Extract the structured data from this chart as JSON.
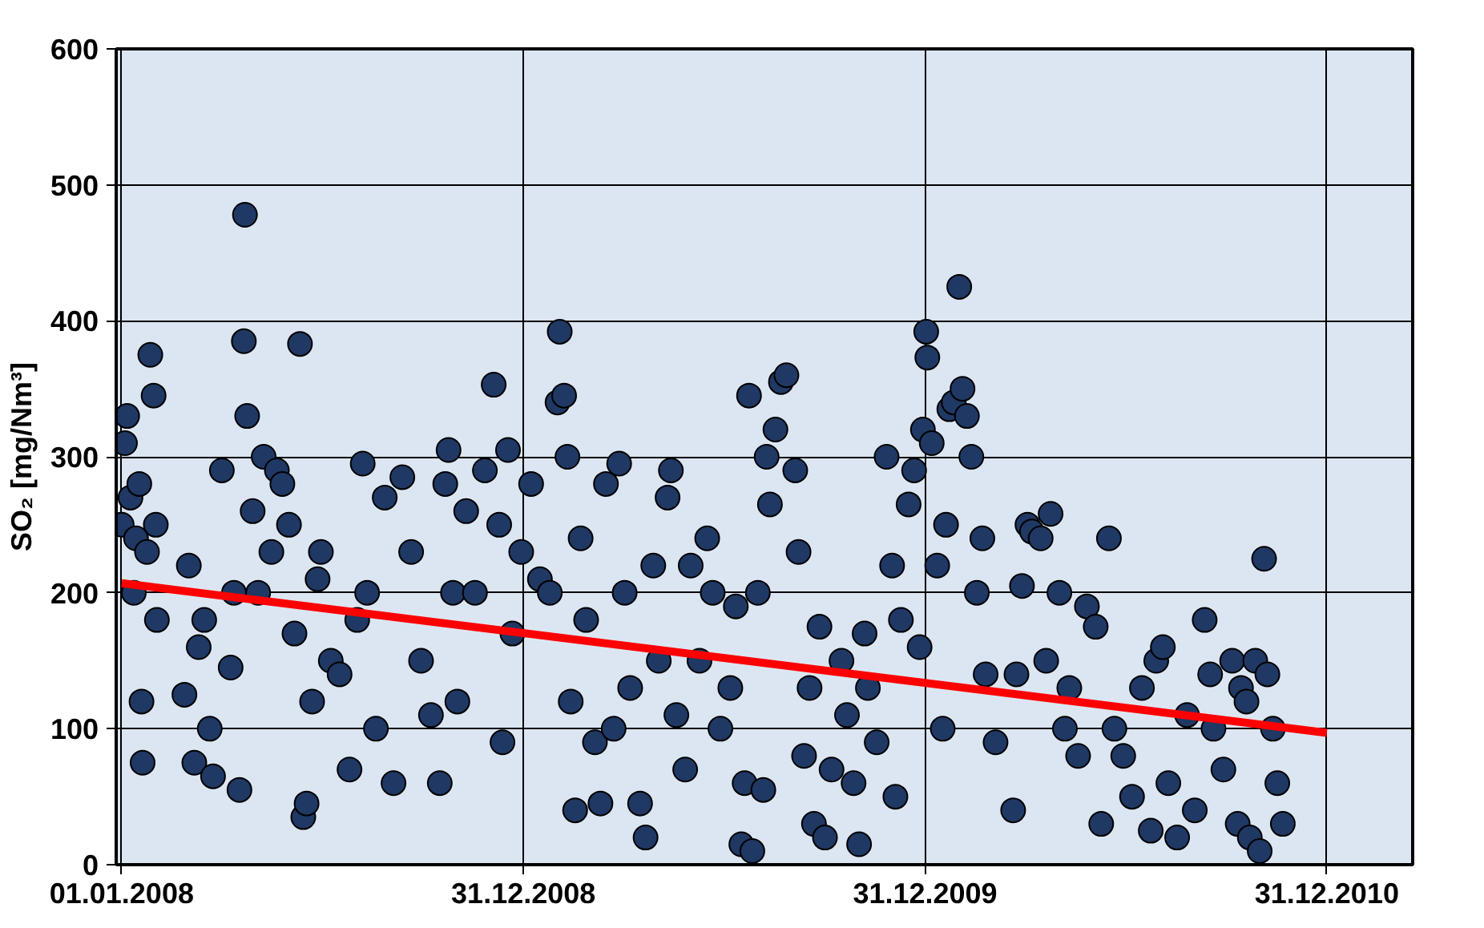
{
  "chart_data": {
    "type": "scatter",
    "ylabel": "SO₂ [mg/Nm³]",
    "xlim": [
      "2007-12-27",
      "2011-03-19"
    ],
    "ylim": [
      0,
      600
    ],
    "xticks": [
      {
        "value": "2008-01-01",
        "label": "01.01.2008"
      },
      {
        "value": "2008-12-31",
        "label": "31.12.2008"
      },
      {
        "value": "2009-12-31",
        "label": "31.12.2009"
      },
      {
        "value": "2010-12-31",
        "label": "31.12.2010"
      }
    ],
    "yticks": [
      0,
      100,
      200,
      300,
      400,
      500,
      600
    ],
    "grid": true,
    "series": [
      {
        "marker": "circle",
        "color": "#1f3864",
        "x": [
          "2008-01-01",
          "2008-01-04",
          "2008-01-06",
          "2008-01-09",
          "2008-01-12",
          "2008-01-14",
          "2008-01-17",
          "2008-01-19",
          "2008-01-20",
          "2008-01-24",
          "2008-01-27",
          "2008-01-30",
          "2008-02-01",
          "2008-02-02",
          "2008-02-27",
          "2008-03-02",
          "2008-03-07",
          "2008-03-11",
          "2008-03-16",
          "2008-03-21",
          "2008-03-24",
          "2008-04-01",
          "2008-04-09",
          "2008-04-12",
          "2008-04-17",
          "2008-04-21",
          "2008-04-22",
          "2008-04-24",
          "2008-04-29",
          "2008-05-04",
          "2008-05-09",
          "2008-05-16",
          "2008-05-21",
          "2008-05-26",
          "2008-06-01",
          "2008-06-06",
          "2008-06-11",
          "2008-06-14",
          "2008-06-17",
          "2008-06-22",
          "2008-06-27",
          "2008-06-30",
          "2008-07-09",
          "2008-07-17",
          "2008-07-26",
          "2008-08-02",
          "2008-08-07",
          "2008-08-11",
          "2008-08-19",
          "2008-08-27",
          "2008-09-04",
          "2008-09-12",
          "2008-09-20",
          "2008-09-29",
          "2008-10-08",
          "2008-10-16",
          "2008-10-21",
          "2008-10-24",
          "2008-10-28",
          "2008-11-01",
          "2008-11-09",
          "2008-11-17",
          "2008-11-26",
          "2008-12-04",
          "2008-12-09",
          "2008-12-12",
          "2008-12-17",
          "2008-12-21",
          "2008-12-29",
          "2009-01-07",
          "2009-01-15",
          "2009-01-24",
          "2009-01-31",
          "2009-02-02",
          "2009-02-06",
          "2009-02-09",
          "2009-02-12",
          "2009-02-16",
          "2009-02-21",
          "2009-02-26",
          "2009-03-06",
          "2009-03-11",
          "2009-03-16",
          "2009-03-23",
          "2009-03-28",
          "2009-04-02",
          "2009-04-07",
          "2009-04-16",
          "2009-04-21",
          "2009-04-28",
          "2009-05-03",
          "2009-05-11",
          "2009-05-14",
          "2009-05-19",
          "2009-05-27",
          "2009-06-01",
          "2009-06-09",
          "2009-06-16",
          "2009-06-21",
          "2009-06-28",
          "2009-07-07",
          "2009-07-12",
          "2009-07-17",
          "2009-07-20",
          "2009-07-24",
          "2009-07-27",
          "2009-08-01",
          "2009-08-06",
          "2009-08-09",
          "2009-08-12",
          "2009-08-17",
          "2009-08-22",
          "2009-08-27",
          "2009-09-04",
          "2009-09-07",
          "2009-09-12",
          "2009-09-17",
          "2009-09-21",
          "2009-09-26",
          "2009-10-01",
          "2009-10-07",
          "2009-10-16",
          "2009-10-21",
          "2009-10-27",
          "2009-11-01",
          "2009-11-06",
          "2009-11-09",
          "2009-11-17",
          "2009-11-26",
          "2009-12-01",
          "2009-12-04",
          "2009-12-09",
          "2009-12-16",
          "2009-12-21",
          "2009-12-26",
          "2009-12-29",
          "2010-01-01",
          "2010-01-02",
          "2010-01-06",
          "2010-01-11",
          "2010-01-16",
          "2010-01-19",
          "2010-01-22",
          "2010-01-26",
          "2010-01-31",
          "2010-02-03",
          "2010-02-07",
          "2010-02-11",
          "2010-02-16",
          "2010-02-21",
          "2010-02-24",
          "2010-03-05",
          "2010-03-21",
          "2010-03-24",
          "2010-03-29",
          "2010-04-03",
          "2010-04-07",
          "2010-04-15",
          "2010-04-20",
          "2010-04-24",
          "2010-05-02",
          "2010-05-07",
          "2010-05-11",
          "2010-05-19",
          "2010-05-27",
          "2010-06-04",
          "2010-06-09",
          "2010-06-16",
          "2010-06-21",
          "2010-06-29",
          "2010-07-07",
          "2010-07-16",
          "2010-07-24",
          "2010-07-29",
          "2010-08-04",
          "2010-08-09",
          "2010-08-17",
          "2010-08-26",
          "2010-09-02",
          "2010-09-11",
          "2010-09-16",
          "2010-09-19",
          "2010-09-28",
          "2010-10-06",
          "2010-10-11",
          "2010-10-14",
          "2010-10-19",
          "2010-10-22",
          "2010-10-27",
          "2010-10-31",
          "2010-11-04",
          "2010-11-07",
          "2010-11-12",
          "2010-11-16",
          "2010-11-21"
        ],
        "values": [
          250,
          310,
          330,
          270,
          200,
          240,
          280,
          120,
          75,
          230,
          375,
          345,
          250,
          180,
          125,
          220,
          75,
          160,
          180,
          100,
          65,
          290,
          145,
          200,
          55,
          385,
          478,
          330,
          260,
          200,
          300,
          230,
          290,
          280,
          250,
          170,
          383,
          35,
          45,
          120,
          210,
          230,
          150,
          140,
          70,
          180,
          295,
          200,
          100,
          270,
          60,
          285,
          230,
          150,
          110,
          60,
          280,
          305,
          200,
          120,
          260,
          200,
          290,
          353,
          250,
          90,
          305,
          170,
          230,
          280,
          210,
          200,
          340,
          392,
          345,
          300,
          120,
          40,
          240,
          180,
          90,
          45,
          280,
          100,
          295,
          200,
          130,
          45,
          20,
          220,
          150,
          270,
          290,
          110,
          70,
          220,
          150,
          240,
          200,
          100,
          130,
          190,
          15,
          60,
          345,
          10,
          200,
          55,
          300,
          265,
          320,
          355,
          360,
          290,
          230,
          80,
          130,
          30,
          175,
          20,
          70,
          150,
          110,
          60,
          15,
          170,
          130,
          90,
          300,
          220,
          50,
          180,
          265,
          290,
          160,
          320,
          392,
          373,
          310,
          220,
          100,
          250,
          335,
          340,
          425,
          350,
          330,
          300,
          200,
          240,
          140,
          90,
          40,
          140,
          205,
          250,
          245,
          240,
          150,
          258,
          200,
          100,
          130,
          80,
          190,
          175,
          30,
          240,
          100,
          80,
          50,
          130,
          25,
          150,
          160,
          60,
          20,
          110,
          40,
          180,
          140,
          100,
          70,
          150,
          30,
          130,
          120,
          20,
          150,
          10,
          225,
          140,
          100,
          60,
          30
        ]
      },
      {
        "type": "line",
        "color": "#ff0000",
        "x": [
          "2008-01-01",
          "2010-12-31"
        ],
        "values": [
          207,
          97
        ]
      }
    ]
  }
}
